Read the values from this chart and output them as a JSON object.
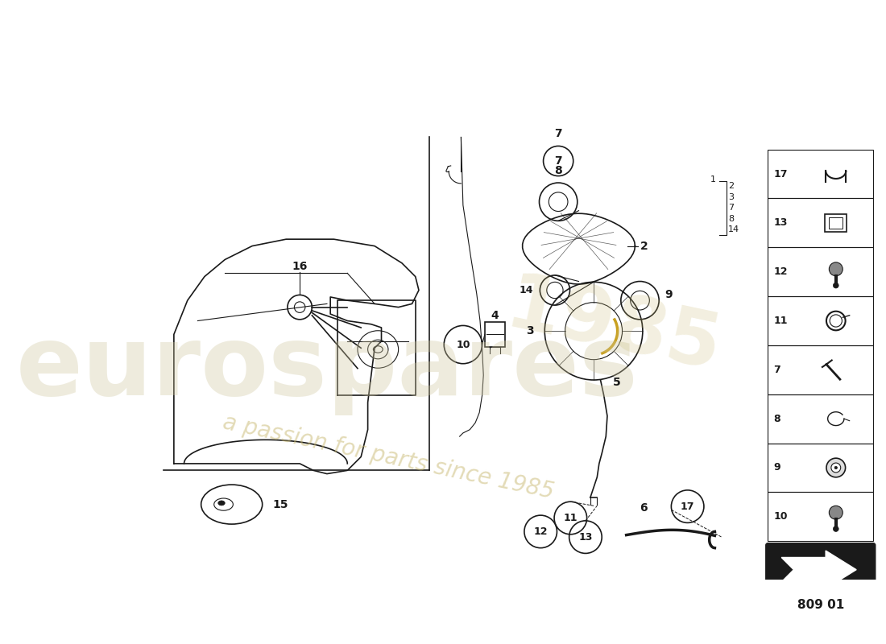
{
  "bg_color": "#ffffff",
  "dc": "#1a1a1a",
  "wc_gold": "#c8b870",
  "wc_gray": "#cccccc",
  "part_code": "809 01",
  "sidebar_items": [
    "17",
    "13",
    "12",
    "11",
    "7",
    "8",
    "9",
    "10"
  ],
  "ref_list": [
    "2",
    "3",
    "7",
    "8",
    "14"
  ],
  "figsize": [
    11.0,
    8.0
  ]
}
